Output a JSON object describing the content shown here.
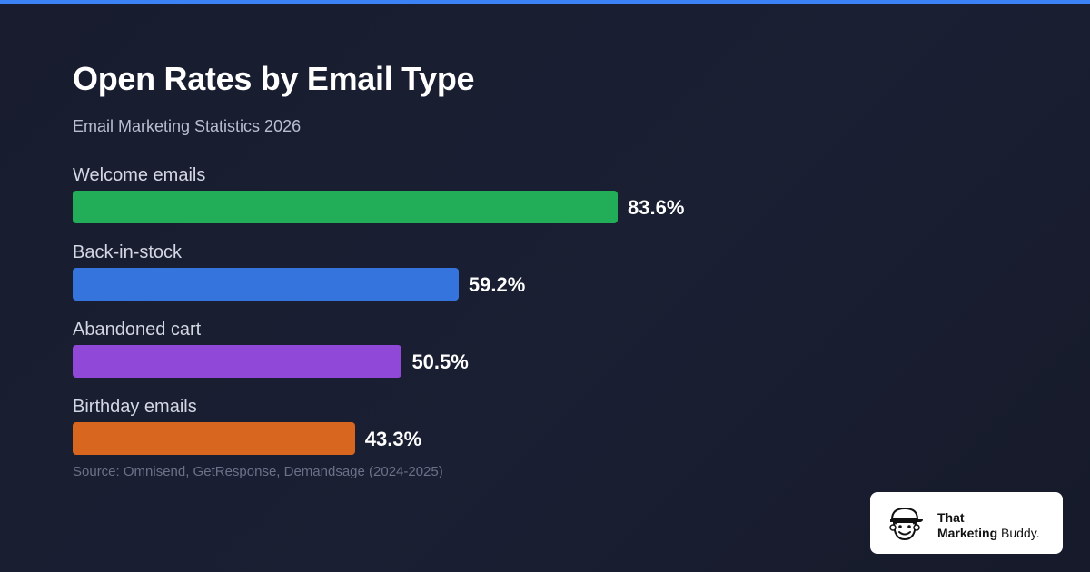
{
  "colors": {
    "accent_bar": "#3b82f6",
    "background": "#181c2e"
  },
  "chart_data": {
    "type": "bar",
    "orientation": "horizontal",
    "title": "Open Rates by Email Type",
    "subtitle": "Email Marketing Statistics 2026",
    "categories": [
      "Welcome emails",
      "Back-in-stock",
      "Abandoned cart",
      "Birthday emails"
    ],
    "values": [
      83.6,
      59.2,
      50.5,
      43.3
    ],
    "value_labels": [
      "83.6%",
      "59.2%",
      "50.5%",
      "43.3%"
    ],
    "colors": [
      "#22ad58",
      "#3574dc",
      "#8f48d8",
      "#d9661f"
    ],
    "xlim": [
      0,
      100
    ],
    "grid": false,
    "source": "Source: Omnisend, GetResponse, Demandsage (2024-2025)"
  },
  "brand": {
    "line1": "That",
    "line2_bold": "Marketing",
    "line2_rest": " Buddy.",
    "logo_icon": "cartoon-face-icon"
  }
}
